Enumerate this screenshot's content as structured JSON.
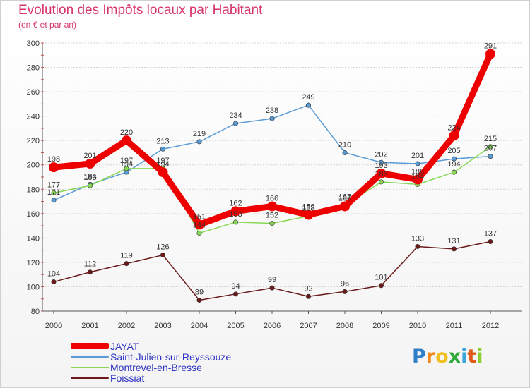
{
  "chart_data": {
    "type": "line",
    "title": "Evolution des Impôts locaux par Habitant",
    "subtitle": "(en € et par an)",
    "xlabel": "",
    "ylabel": "",
    "categories": [
      "2000",
      "2001",
      "2002",
      "2003",
      "2004",
      "2005",
      "2006",
      "2007",
      "2008",
      "2009",
      "2010",
      "2011",
      "2012"
    ],
    "ylim": [
      80,
      300
    ],
    "yticks": [
      80,
      100,
      120,
      140,
      160,
      180,
      200,
      220,
      240,
      260,
      280,
      300
    ],
    "grid": "horizontal",
    "legend_position": "bottom-left",
    "series": [
      {
        "name": "JAYAT",
        "color": "#ee0000",
        "values": [
          198,
          201,
          220,
          194,
          151,
          162,
          166,
          159,
          166,
          193,
          188,
          224,
          291
        ]
      },
      {
        "name": "Saint-Julien-sur-Reyssouze",
        "color": "#5a9bd4",
        "values": [
          171,
          184,
          194,
          213,
          219,
          234,
          238,
          249,
          210,
          202,
          201,
          205,
          207
        ]
      },
      {
        "name": "Montrevel-en-Bresse",
        "color": "#88d855",
        "values": [
          177,
          183,
          197,
          197,
          144,
          153,
          152,
          158,
          167,
          186,
          184,
          194,
          215
        ]
      },
      {
        "name": "Foissiat",
        "color": "#6b1a1a",
        "values": [
          104,
          112,
          119,
          126,
          89,
          94,
          99,
          92,
          96,
          101,
          133,
          131,
          137
        ]
      }
    ]
  },
  "logo": {
    "letters": [
      "P",
      "r",
      "o",
      "x",
      "i",
      "t",
      "i"
    ],
    "colors": [
      "#2f7fc8",
      "#f08a1c",
      "#f0c020",
      "#2faa3a",
      "#3aa7d8",
      "#e05a18",
      "#8acd2d"
    ]
  }
}
